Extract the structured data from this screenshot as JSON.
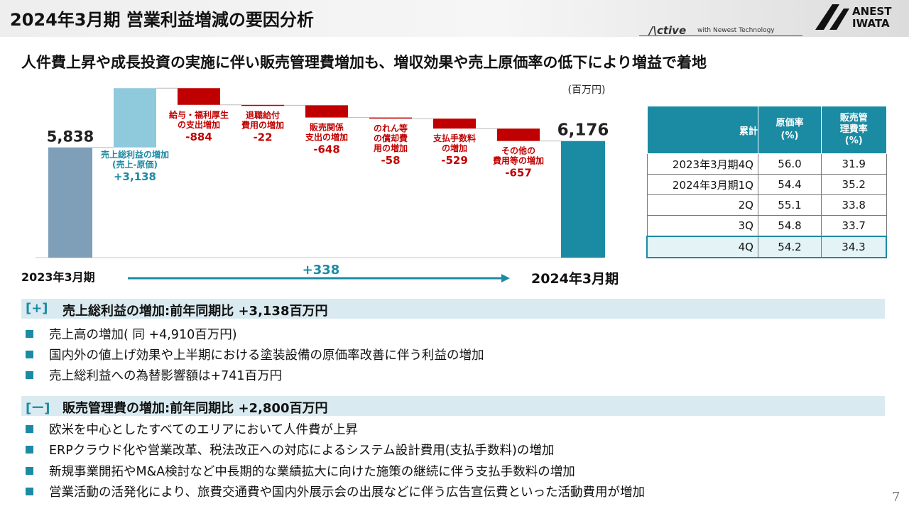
{
  "header": {
    "title": "2024年3月期 営業利益増減の要因分析",
    "slogan_logo": "/\\ctive",
    "slogan_tag": "with Newest Technology",
    "brand_line1": "ANEST",
    "brand_line2": "IWATA"
  },
  "subtitle": "人件費上昇や成長投資の実施に伴い販売管理費増加も、増収効果や売上原価率の低下により増益で着地",
  "colors": {
    "teal": "#1b8ba3",
    "light_blue": "#8ec9dc",
    "gray_blue": "#7f9fb8",
    "red": "#c00000"
  },
  "chart_data": {
    "type": "bar",
    "subtype": "waterfall",
    "unit": "(百万円)",
    "x_start_label": "2023年3月期",
    "x_end_label": "2024年3月期",
    "net_change_label": "+338",
    "start": {
      "value": 5838,
      "label": "5,838"
    },
    "end": {
      "value": 6176,
      "label": "6,176"
    },
    "steps": [
      {
        "name": "売上総利益の増加\n(売上-原価)",
        "value": 3138,
        "label": "+3,138",
        "color": "#8ec9dc",
        "text_color": "#1b8ba3"
      },
      {
        "name": "給与・福利厚生\nの支出増加",
        "value": -884,
        "label": "-884",
        "color": "#c00000",
        "text_color": "#c00000"
      },
      {
        "name": "退職給付\n費用の増加",
        "value": -22,
        "label": "-22",
        "color": "#c00000",
        "text_color": "#c00000"
      },
      {
        "name": "販売関係\n支出の増加",
        "value": -648,
        "label": "-648",
        "color": "#c00000",
        "text_color": "#c00000"
      },
      {
        "name": "のれん等\nの償却費\n用の増加",
        "value": -58,
        "label": "-58",
        "color": "#c00000",
        "text_color": "#c00000"
      },
      {
        "name": "支払手数料\nの増加",
        "value": -529,
        "label": "-529",
        "color": "#c00000",
        "text_color": "#c00000"
      },
      {
        "name": "その他の\n費用等の増加",
        "value": -657,
        "label": "-657",
        "color": "#c00000",
        "text_color": "#c00000"
      }
    ],
    "ylim": [
      0,
      9000
    ],
    "grid": false,
    "legend": "none"
  },
  "table": {
    "headers": [
      "累計",
      "原価率\n(%)",
      "販売管\n理費率\n(%)"
    ],
    "rows": [
      {
        "label": "2023年3月期4Q",
        "cost": "56.0",
        "sga": "31.9"
      },
      {
        "label": "2024年3月期1Q",
        "cost": "54.4",
        "sga": "35.2"
      },
      {
        "label": "2Q",
        "cost": "55.1",
        "sga": "33.8"
      },
      {
        "label": "3Q",
        "cost": "54.8",
        "sga": "33.7"
      },
      {
        "label": "4Q",
        "cost": "54.2",
        "sga": "34.3"
      }
    ]
  },
  "section_plus": {
    "tag": "[+]",
    "title": "売上総利益の増加:前年同期比 +3,138百万円",
    "bullets": [
      "売上高の増加( 同 +4,910百万円)",
      "国内外の値上げ効果や上半期における塗装設備の原価率改善に伴う利益の増加",
      "売上総利益への為替影響額は+741百万円"
    ]
  },
  "section_minus": {
    "tag": "[ー]",
    "title": "販売管理費の増加:前年同期比 +2,800百万円",
    "bullets": [
      "欧米を中心としたすべてのエリアにおいて人件費が上昇",
      "ERPクラウド化や営業改革、税法改正への対応によるシステム設計費用(支払手数料)の増加",
      "新規事業開拓やM&A検討など中長期的な業績拡大に向けた施策の継続に伴う支払手数料の増加",
      "営業活動の活発化により、旅費交通費や国内外展示会の出展などに伴う広告宣伝費といった活動費用が増加"
    ]
  },
  "page_number": "7"
}
